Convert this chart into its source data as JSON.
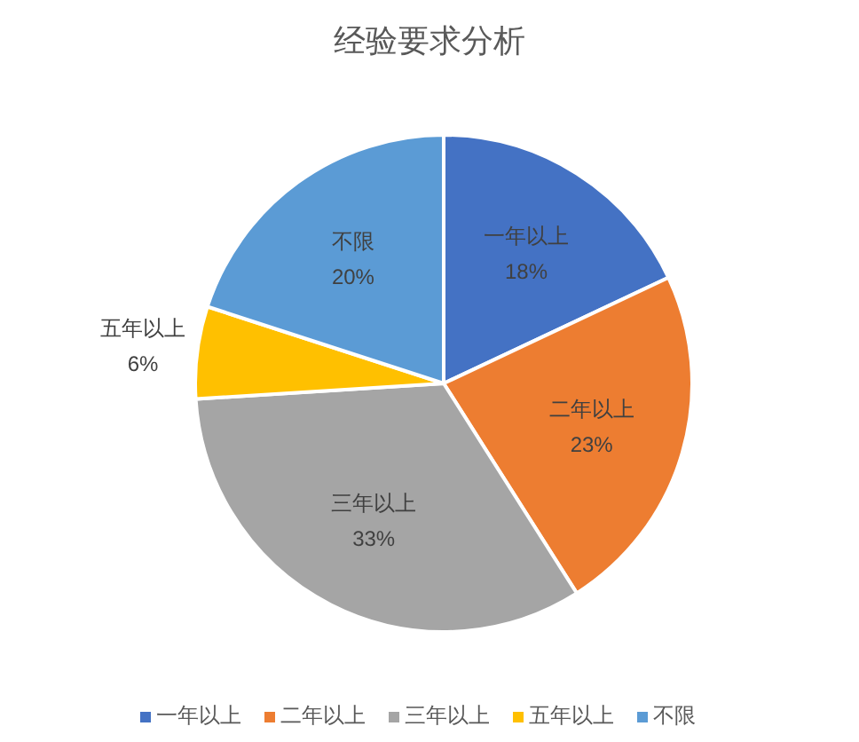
{
  "chart_data": {
    "type": "pie",
    "title": "经验要求分析",
    "categories": [
      "一年以上",
      "二年以上",
      "三年以上",
      "五年以上",
      "不限"
    ],
    "values": [
      18,
      23,
      33,
      6,
      20
    ],
    "value_labels": [
      "18%",
      "23%",
      "33%",
      "6%",
      "20%"
    ],
    "colors": [
      "#4472c4",
      "#ed7d31",
      "#a5a5a5",
      "#ffc000",
      "#5b9bd5"
    ],
    "legend": "bottom"
  }
}
